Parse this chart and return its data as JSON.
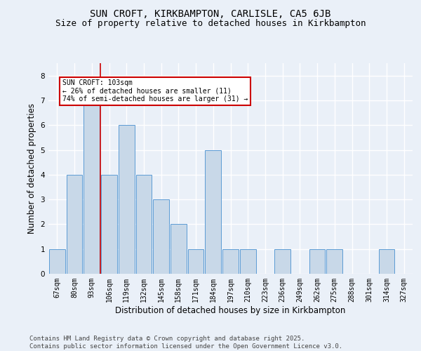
{
  "title_line1": "SUN CROFT, KIRKBAMPTON, CARLISLE, CA5 6JB",
  "title_line2": "Size of property relative to detached houses in Kirkbampton",
  "xlabel": "Distribution of detached houses by size in Kirkbampton",
  "ylabel": "Number of detached properties",
  "categories": [
    "67sqm",
    "80sqm",
    "93sqm",
    "106sqm",
    "119sqm",
    "132sqm",
    "145sqm",
    "158sqm",
    "171sqm",
    "184sqm",
    "197sqm",
    "210sqm",
    "223sqm",
    "236sqm",
    "249sqm",
    "262sqm",
    "275sqm",
    "288sqm",
    "301sqm",
    "314sqm",
    "327sqm"
  ],
  "values": [
    1,
    4,
    7,
    4,
    6,
    4,
    3,
    2,
    1,
    5,
    1,
    1,
    0,
    1,
    0,
    1,
    1,
    0,
    0,
    1,
    0
  ],
  "bar_color": "#c8d8e8",
  "bar_edge_color": "#5b9bd5",
  "vline_color": "#cc0000",
  "annotation_text": "SUN CROFT: 103sqm\n← 26% of detached houses are smaller (11)\n74% of semi-detached houses are larger (31) →",
  "annotation_box_color": "white",
  "annotation_box_edge_color": "#cc0000",
  "ylim": [
    0,
    8.5
  ],
  "yticks": [
    0,
    1,
    2,
    3,
    4,
    5,
    6,
    7,
    8
  ],
  "background_color": "#eaf0f8",
  "plot_bg_color": "#eaf0f8",
  "grid_color": "white",
  "footer": "Contains HM Land Registry data © Crown copyright and database right 2025.\nContains public sector information licensed under the Open Government Licence v3.0.",
  "title_fontsize": 10,
  "subtitle_fontsize": 9,
  "tick_fontsize": 7,
  "label_fontsize": 8.5,
  "footer_fontsize": 6.5
}
